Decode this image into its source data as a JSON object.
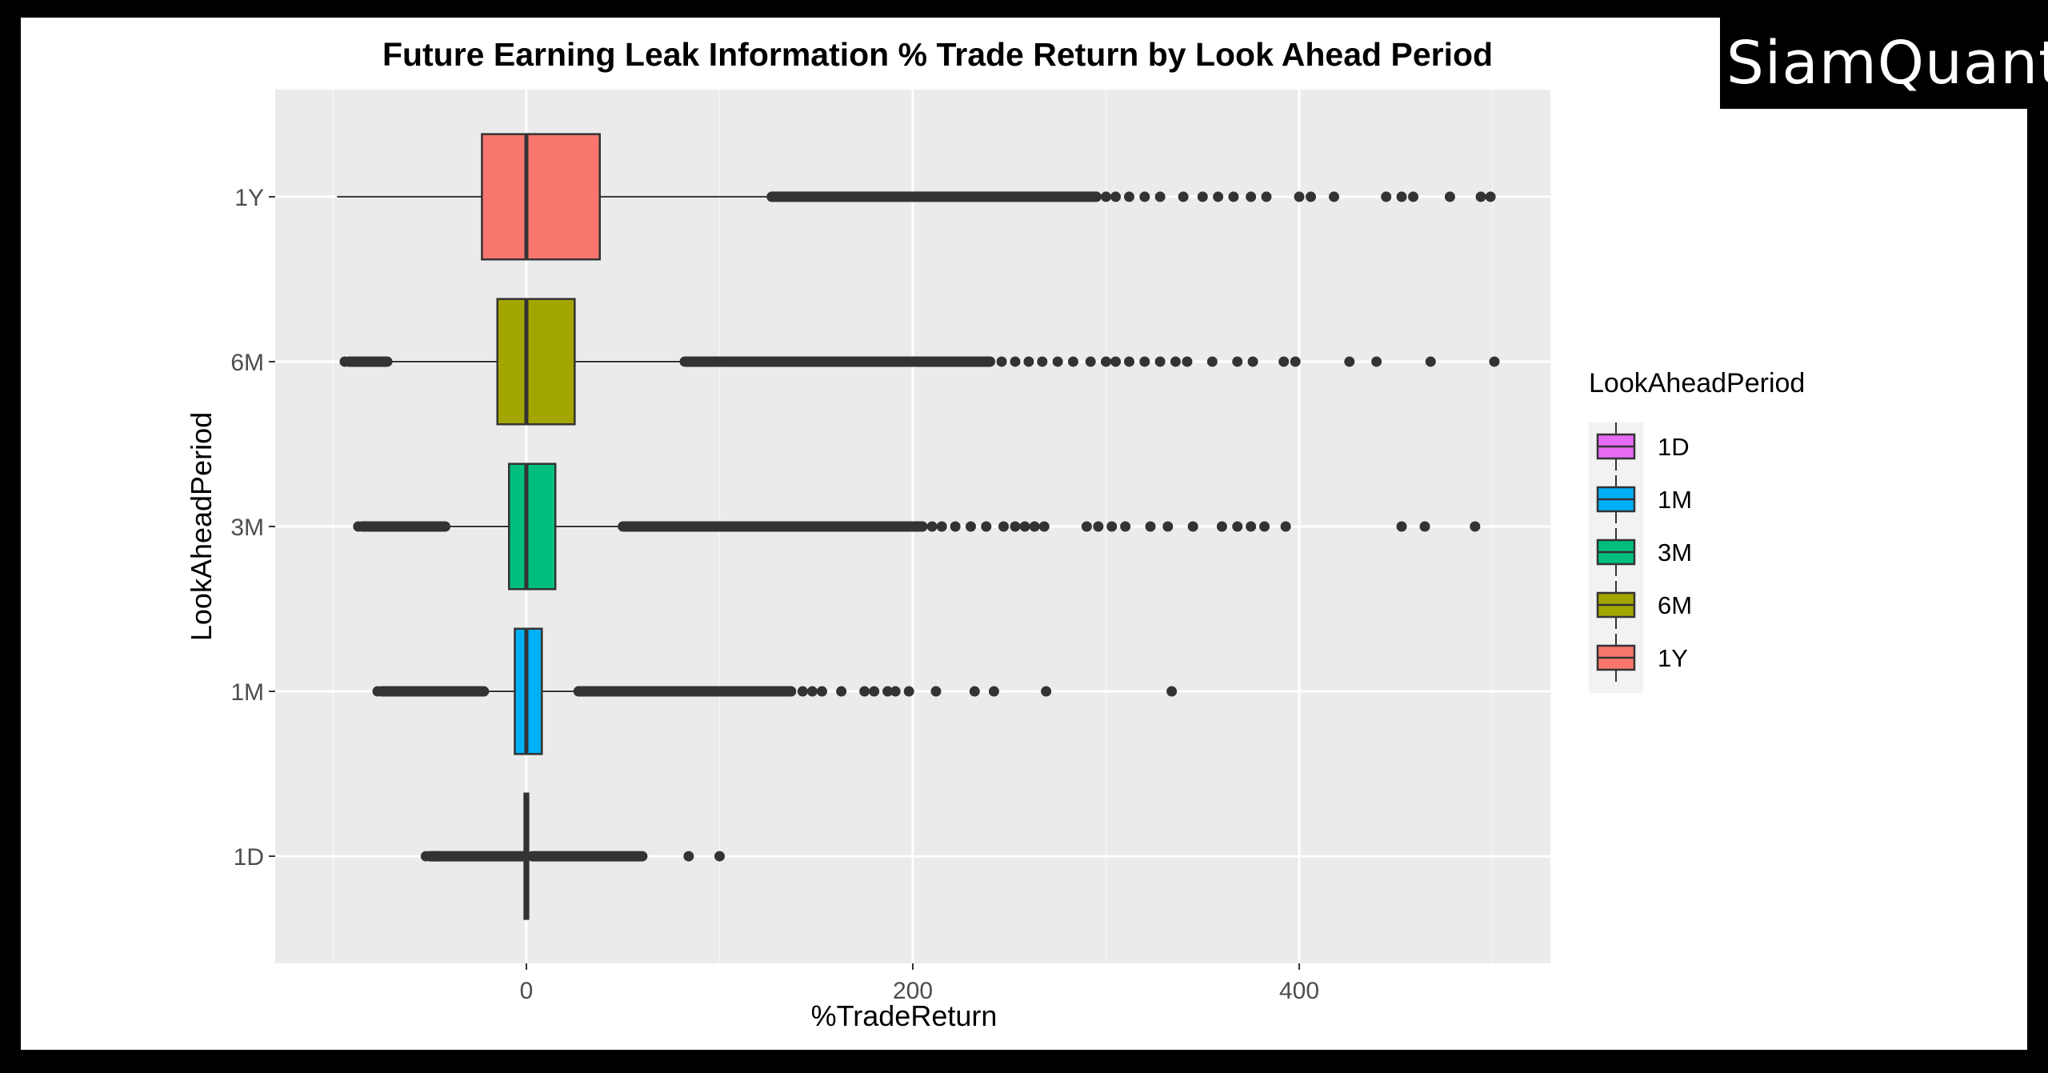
{
  "brand": {
    "name": "SiamQuant"
  },
  "chart_data": {
    "type": "boxplot",
    "title": "Future Earning Leak Information % Trade Return by Look Ahead Period",
    "xlabel": "%TradeReturn",
    "ylabel": "LookAheadPeriod",
    "xlim": [
      -130,
      530
    ],
    "x_ticks": [
      0,
      200,
      400
    ],
    "categories": [
      "1D",
      "1M",
      "3M",
      "6M",
      "1Y"
    ],
    "legend": {
      "title": "LookAheadPeriod",
      "position": "right",
      "entries": [
        "1D",
        "1M",
        "3M",
        "6M",
        "1Y"
      ]
    },
    "colors": {
      "1D": "#E76BF3",
      "1M": "#00B0F6",
      "3M": "#00BF7D",
      "6M": "#A3A500",
      "1Y": "#F8766D"
    },
    "panel_background": "#EBEBEB",
    "grid": true,
    "series": [
      {
        "name": "1D",
        "whisker_low": -1,
        "q1": -1,
        "median": 0,
        "q3": 1,
        "whisker_high": 1,
        "outlier_bands": [
          [
            -50,
            -2
          ],
          [
            3,
            60
          ]
        ],
        "outliers": [
          -52,
          -48,
          -45,
          84,
          100
        ]
      },
      {
        "name": "1M",
        "whisker_low": -20,
        "q1": -6,
        "median": 0,
        "q3": 8,
        "whisker_high": 25,
        "outlier_bands": [
          [
            -75,
            -22
          ],
          [
            27,
            137
          ]
        ],
        "outliers": [
          -77,
          143,
          148,
          153,
          163,
          175,
          180,
          187,
          191,
          198,
          212,
          232,
          242,
          269,
          334
        ]
      },
      {
        "name": "3M",
        "whisker_low": -40,
        "q1": -9,
        "median": 0,
        "q3": 15,
        "whisker_high": 48,
        "outlier_bands": [
          [
            -85,
            -42
          ],
          [
            50,
            205
          ]
        ],
        "outliers": [
          -87,
          210,
          215,
          222,
          230,
          238,
          247,
          253,
          258,
          263,
          268,
          290,
          296,
          303,
          310,
          323,
          332,
          345,
          360,
          368,
          375,
          382,
          393,
          453,
          465,
          491
        ]
      },
      {
        "name": "6M",
        "whisker_low": -70,
        "q1": -15,
        "median": 0,
        "q3": 25,
        "whisker_high": 80,
        "outlier_bands": [
          [
            -92,
            -72
          ],
          [
            82,
            240
          ]
        ],
        "outliers": [
          -94,
          246,
          253,
          260,
          267,
          275,
          283,
          292,
          300,
          305,
          312,
          320,
          328,
          336,
          342,
          355,
          368,
          376,
          392,
          398,
          426,
          440,
          468,
          501
        ]
      },
      {
        "name": "1Y",
        "whisker_low": -98,
        "q1": -23,
        "median": 0,
        "q3": 38,
        "whisker_high": 125,
        "outlier_bands": [
          [
            127,
            295
          ]
        ],
        "outliers": [
          300,
          305,
          312,
          320,
          328,
          340,
          350,
          358,
          366,
          375,
          383,
          400,
          406,
          418,
          445,
          453,
          459,
          478,
          494,
          499
        ]
      }
    ]
  }
}
